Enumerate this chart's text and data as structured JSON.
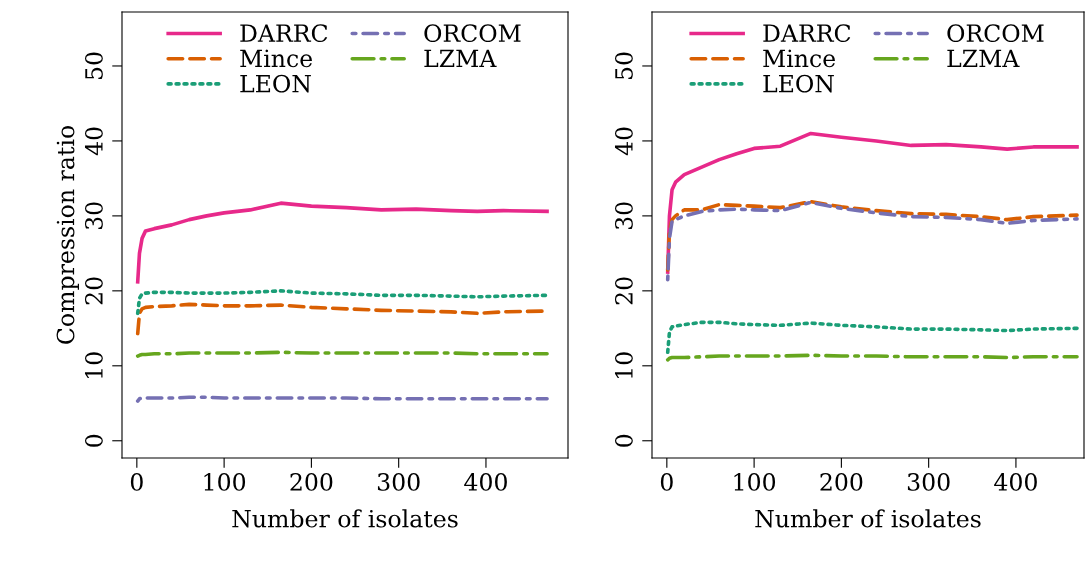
{
  "chart_data": [
    {
      "type": "line",
      "xlabel": "Number of isolates",
      "ylabel": "Compression ratio",
      "legend": "top",
      "xlim": [
        -17,
        494
      ],
      "ylim": [
        -2.3,
        57.2
      ],
      "xticks": [
        0,
        100,
        200,
        300,
        400
      ],
      "yticks": [
        0,
        10,
        20,
        30,
        40,
        50
      ],
      "x": [
        1,
        3,
        6,
        10,
        20,
        40,
        60,
        80,
        100,
        130,
        165,
        200,
        240,
        280,
        320,
        360,
        390,
        420,
        470
      ],
      "series": [
        {
          "name": "DARRC",
          "color": "#e7298a",
          "line_style": "solid",
          "values": [
            21.2,
            25,
            27,
            28,
            28.3,
            28.8,
            29.5,
            30,
            30.4,
            30.8,
            31.7,
            31.3,
            31.1,
            30.8,
            30.9,
            30.7,
            30.6,
            30.7,
            30.6
          ]
        },
        {
          "name": "Mince",
          "color": "#d95f02",
          "line_style": "dashed",
          "values": [
            14.3,
            17,
            17.6,
            17.8,
            17.9,
            18.0,
            18.2,
            18.1,
            18.0,
            18.0,
            18.1,
            17.8,
            17.6,
            17.4,
            17.3,
            17.2,
            17.0,
            17.2,
            17.3
          ]
        },
        {
          "name": "LEON",
          "color": "#1b9e77",
          "line_style": "dotted",
          "values": [
            17,
            19,
            19.6,
            19.7,
            19.8,
            19.8,
            19.7,
            19.7,
            19.7,
            19.8,
            20,
            19.7,
            19.6,
            19.4,
            19.4,
            19.3,
            19.2,
            19.3,
            19.4
          ]
        },
        {
          "name": "ORCOM",
          "color": "#7570b3",
          "line_style": "dashdot",
          "values": [
            5.3,
            5.6,
            5.7,
            5.7,
            5.7,
            5.7,
            5.8,
            5.8,
            5.7,
            5.7,
            5.7,
            5.7,
            5.7,
            5.6,
            5.6,
            5.6,
            5.6,
            5.6,
            5.6
          ]
        },
        {
          "name": "LZMA",
          "color": "#66a61e",
          "line_style": "longdashdot",
          "values": [
            11.3,
            11.4,
            11.5,
            11.5,
            11.6,
            11.6,
            11.7,
            11.7,
            11.7,
            11.7,
            11.8,
            11.7,
            11.7,
            11.7,
            11.7,
            11.7,
            11.6,
            11.6,
            11.6
          ]
        }
      ]
    },
    {
      "type": "line",
      "xlabel": "Number of isolates",
      "legend": "top",
      "xlim": [
        -17,
        478
      ],
      "ylim": [
        -2.3,
        57.2
      ],
      "xticks": [
        0,
        100,
        200,
        300,
        400
      ],
      "yticks": [
        0,
        10,
        20,
        30,
        40,
        50
      ],
      "x": [
        1,
        3,
        6,
        10,
        20,
        40,
        60,
        80,
        100,
        130,
        165,
        200,
        240,
        280,
        320,
        360,
        390,
        420,
        470
      ],
      "series": [
        {
          "name": "DARRC",
          "color": "#e7298a",
          "line_style": "solid",
          "values": [
            22.5,
            30,
            33.5,
            34.5,
            35.5,
            36.5,
            37.5,
            38.3,
            39,
            39.3,
            41,
            40.5,
            40,
            39.4,
            39.5,
            39.2,
            38.9,
            39.2,
            39.2
          ]
        },
        {
          "name": "Mince",
          "color": "#d95f02",
          "line_style": "dashed",
          "values": [
            22.8,
            28,
            29.5,
            30,
            30.8,
            30.8,
            31.5,
            31.4,
            31.3,
            31.1,
            31.9,
            31.2,
            30.7,
            30.3,
            30.2,
            29.9,
            29.5,
            29.9,
            30.1
          ]
        },
        {
          "name": "LEON",
          "color": "#1b9e77",
          "line_style": "dotted",
          "values": [
            11.8,
            14.5,
            15.2,
            15.3,
            15.5,
            15.8,
            15.8,
            15.6,
            15.5,
            15.4,
            15.7,
            15.4,
            15.2,
            14.9,
            14.9,
            14.8,
            14.7,
            14.9,
            15.0
          ]
        },
        {
          "name": "ORCOM",
          "color": "#7570b3",
          "line_style": "dashdot",
          "values": [
            21.5,
            27,
            29.3,
            29.5,
            30,
            30.6,
            30.8,
            30.9,
            30.8,
            30.7,
            31.8,
            31.0,
            30.4,
            29.9,
            29.8,
            29.5,
            29.0,
            29.4,
            29.6
          ]
        },
        {
          "name": "LZMA",
          "color": "#66a61e",
          "line_style": "longdashdot",
          "values": [
            10.8,
            11.0,
            11.1,
            11.1,
            11.1,
            11.2,
            11.3,
            11.3,
            11.3,
            11.3,
            11.4,
            11.3,
            11.3,
            11.2,
            11.2,
            11.2,
            11.1,
            11.2,
            11.2
          ]
        }
      ]
    }
  ]
}
